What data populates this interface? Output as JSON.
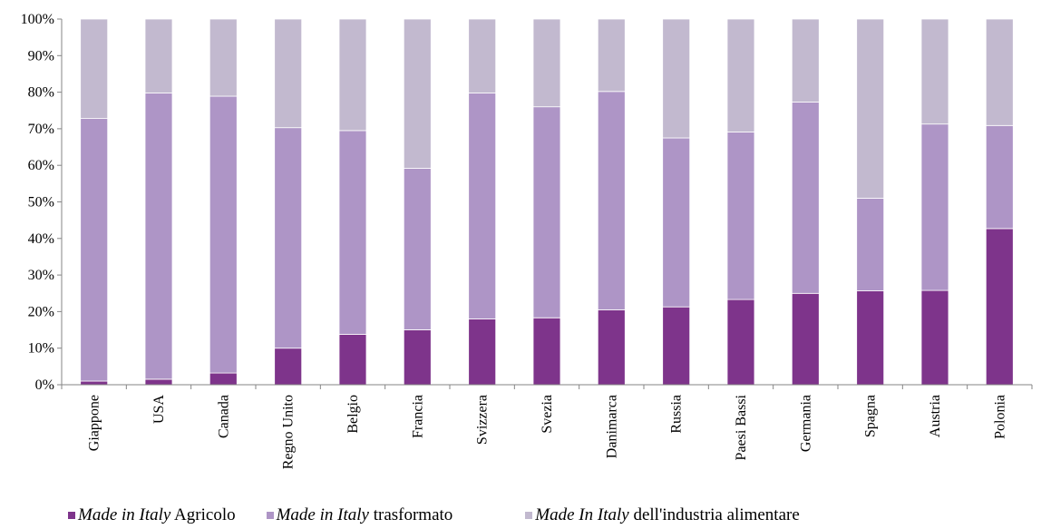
{
  "chart_data": {
    "type": "bar",
    "stacked": true,
    "title": "",
    "xlabel": "",
    "ylabel": "",
    "ylim": [
      0,
      100
    ],
    "y_ticks": [
      "0%",
      "10%",
      "20%",
      "30%",
      "40%",
      "50%",
      "60%",
      "70%",
      "80%",
      "90%",
      "100%"
    ],
    "grid": false,
    "legend_position": "bottom",
    "categories": [
      "Giappone",
      "USA",
      "Canada",
      "Regno Unito",
      "Belgio",
      "Francia",
      "Svizzera",
      "Svezia",
      "Danimarca",
      "Russia",
      "Paesi Bassi",
      "Germania",
      "Spagna",
      "Austria",
      "Polonia"
    ],
    "series": [
      {
        "name_italic": "Made in Italy",
        "name_rest": " Agricolo",
        "color": "#7e348b",
        "values": [
          1,
          1.5,
          3.2,
          10,
          13.8,
          15,
          18,
          18.3,
          20.5,
          21.3,
          23.3,
          25,
          25.7,
          25.8,
          42.7
        ]
      },
      {
        "name_italic": "Made in Italy",
        "name_rest": " trasformato",
        "color": "#ae95c6",
        "values": [
          71.8,
          78.3,
          75.7,
          60.3,
          55.7,
          44.2,
          61.8,
          57.7,
          59.7,
          46.2,
          45.8,
          52.3,
          25.3,
          45.5,
          28.2
        ]
      },
      {
        "name_italic": "Made In Italy",
        "name_rest": " dell'industria alimentare",
        "color": "#c2b9cf",
        "values": [
          27.2,
          20.2,
          21.1,
          29.7,
          30.5,
          40.8,
          20.2,
          24,
          19.8,
          32.5,
          30.9,
          22.7,
          49,
          28.7,
          29.1
        ]
      }
    ]
  }
}
